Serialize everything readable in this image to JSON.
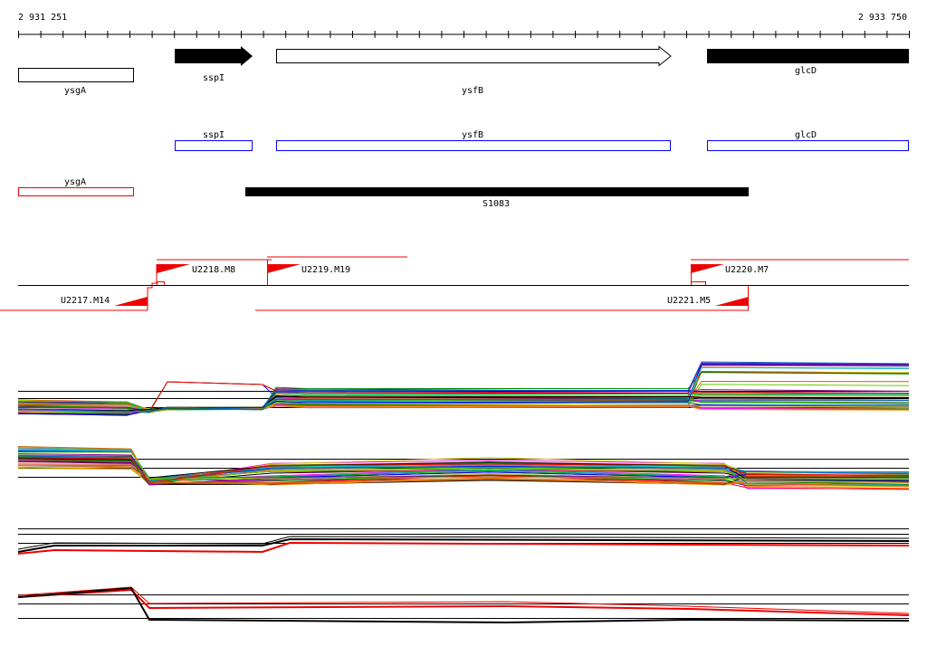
{
  "ruler": {
    "start": "2 931 251",
    "end": "2 933 750"
  },
  "genes": [
    "ysgA",
    "sspI",
    "ysfB",
    "glcD"
  ],
  "annotations": [
    "sspI",
    "ysfB",
    "glcD",
    "ysgA"
  ],
  "transcripts": [
    "S1083"
  ],
  "promoters": [
    "U2218.M8",
    "U2219.M19",
    "U2220.M7",
    "U2217.M14",
    "U2221.M5"
  ]
}
